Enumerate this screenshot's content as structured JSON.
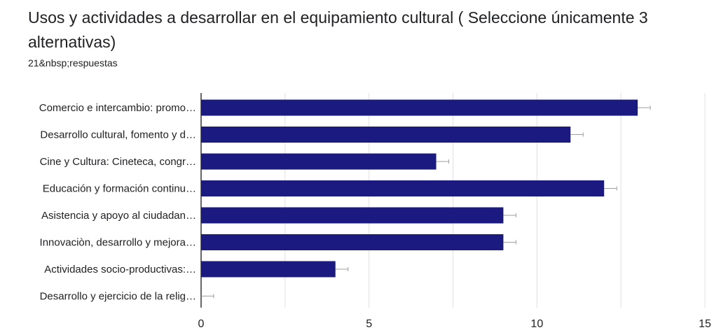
{
  "header": {
    "title": "Usos y actividades a desarrollar en el equipamiento cultural ( Seleccione únicamente 3 alternativas)",
    "responses": "21&nbsp;respuestas"
  },
  "colors": {
    "bar": "#1a1a80",
    "grid": "#e0e0e0",
    "axis": "#333333",
    "error_bar": "#9e9e9e",
    "text": "#202124"
  },
  "chart_data": {
    "type": "bar",
    "orientation": "horizontal",
    "title": "",
    "xlabel": "",
    "ylabel": "",
    "categories": [
      "Comercio e intercambio: promo…",
      "Desarrollo cultural, fomento y d…",
      "Cine y Cultura: Cineteca, congr…",
      "Educación y formación continu…",
      "Asistencia y apoyo al ciudadan…",
      "Innovaciòn, desarrollo y mejora…",
      "Actividades socio-productivas:…",
      "Desarrollo y ejercicio de la relig…"
    ],
    "values": [
      13,
      11,
      7,
      12,
      9,
      9,
      4,
      0
    ],
    "xlim": [
      0,
      15
    ],
    "xticks": [
      0,
      5,
      10,
      15
    ],
    "grid": true,
    "error_bars": true,
    "legend": "none"
  }
}
